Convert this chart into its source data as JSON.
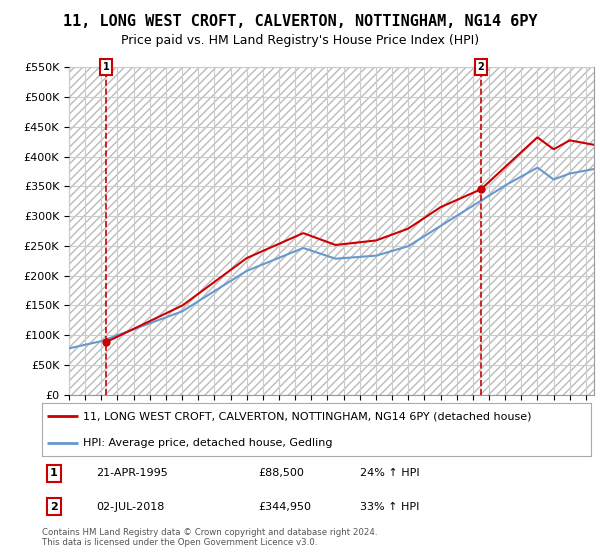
{
  "title": "11, LONG WEST CROFT, CALVERTON, NOTTINGHAM, NG14 6PY",
  "subtitle": "Price paid vs. HM Land Registry's House Price Index (HPI)",
  "legend_line1": "11, LONG WEST CROFT, CALVERTON, NOTTINGHAM, NG14 6PY (detached house)",
  "legend_line2": "HPI: Average price, detached house, Gedling",
  "point1_label": "1",
  "point1_date": "21-APR-1995",
  "point1_price": "£88,500",
  "point1_hpi": "24% ↑ HPI",
  "point2_label": "2",
  "point2_date": "02-JUL-2018",
  "point2_price": "£344,950",
  "point2_hpi": "33% ↑ HPI",
  "point1_year": 1995.3,
  "point1_value": 88500,
  "point2_year": 2018.5,
  "point2_value": 344950,
  "ylim": [
    0,
    550000
  ],
  "yticks": [
    0,
    50000,
    100000,
    150000,
    200000,
    250000,
    300000,
    350000,
    400000,
    450000,
    500000,
    550000
  ],
  "ytick_labels": [
    "£0",
    "£50K",
    "£100K",
    "£150K",
    "£200K",
    "£250K",
    "£300K",
    "£350K",
    "£400K",
    "£450K",
    "£500K",
    "£550K"
  ],
  "xlim_start": 1993,
  "xlim_end": 2025.5,
  "hpi_color": "#6699cc",
  "price_color": "#cc0000",
  "vline_color": "#cc0000",
  "grid_color": "#cccccc",
  "background_color": "#ffffff",
  "footer": "Contains HM Land Registry data © Crown copyright and database right 2024.\nThis data is licensed under the Open Government Licence v3.0.",
  "title_fontsize": 11,
  "subtitle_fontsize": 9,
  "axis_fontsize": 8,
  "legend_fontsize": 8
}
